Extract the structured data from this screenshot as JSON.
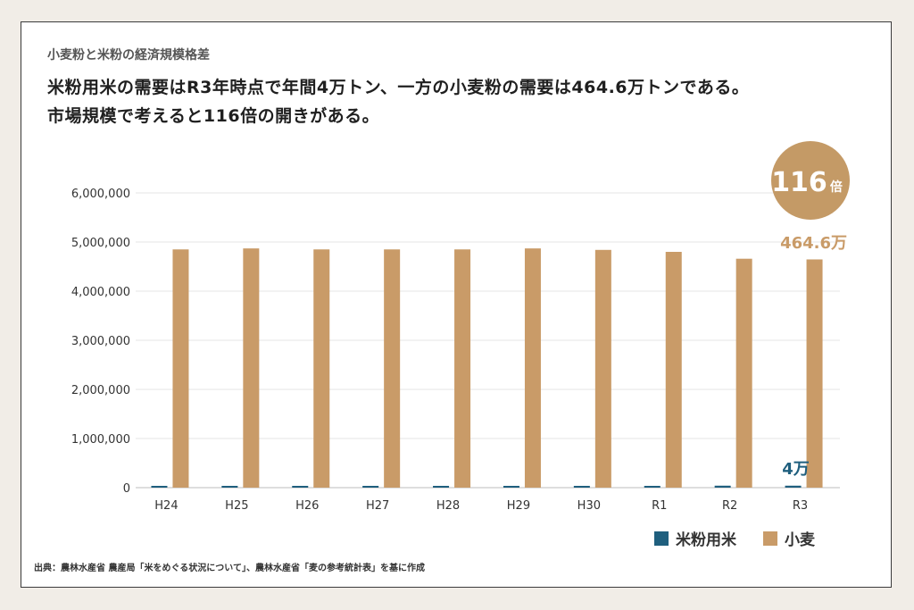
{
  "subtitle": "小麦粉と米粉の経済規模格差",
  "headline_line1": "米粉用米の需要はR3年時点で年間4万トン、一方の小麦粉の需要は464.6万トンである。",
  "headline_line2": "市場規模で考えると116倍の開きがある。",
  "ratio_badge": {
    "number": "116",
    "unit": "倍",
    "color": "#c49a66"
  },
  "source": "出典：農林水産省 農産局「米をめぐる状況について」、農林水産省「麦の参考統計表」を基に作成",
  "colors": {
    "rice": "#1f5f7e",
    "wheat": "#c99b68",
    "grid": "#e6e6e6",
    "axis": "#bdbdbd"
  },
  "chart_data": {
    "type": "bar",
    "categories": [
      "H24",
      "H25",
      "H26",
      "H27",
      "H28",
      "H29",
      "H30",
      "R1",
      "R2",
      "R3"
    ],
    "series": [
      {
        "name": "米粉用米",
        "values": [
          30000,
          35000,
          30000,
          30000,
          30000,
          30000,
          30000,
          30000,
          40000,
          40000
        ]
      },
      {
        "name": "小麦",
        "values": [
          4850000,
          4870000,
          4850000,
          4850000,
          4850000,
          4870000,
          4840000,
          4800000,
          4660000,
          4646000
        ]
      }
    ],
    "ylim": [
      0,
      6000000
    ],
    "yticks": [
      0,
      1000000,
      2000000,
      3000000,
      4000000,
      5000000,
      6000000
    ],
    "ytick_labels": [
      "0",
      "1,000,000",
      "2,000,000",
      "3,000,000",
      "4,000,000",
      "5,000,000",
      "6,000,000"
    ],
    "annotations": [
      {
        "text": "464.6万",
        "category": "R3",
        "series": "小麦"
      },
      {
        "text": "4万",
        "category": "R3",
        "series": "米粉用米"
      }
    ],
    "title": "",
    "xlabel": "",
    "ylabel": "",
    "grid": true,
    "legend": "bottom-right"
  }
}
